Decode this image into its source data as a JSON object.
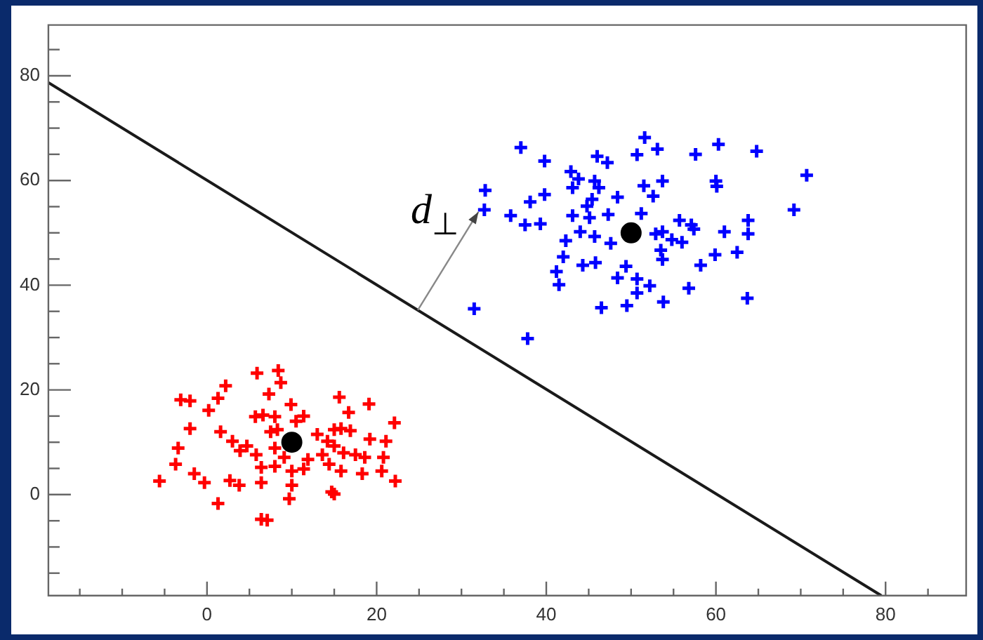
{
  "chart_data": {
    "type": "scatter",
    "xlim": [
      -18.7,
      89.5
    ],
    "ylim": [
      -19.3,
      89.7
    ],
    "xticks": [
      {
        "value": -15,
        "label": null
      },
      {
        "value": -10,
        "label": null
      },
      {
        "value": -5,
        "label": null
      },
      0,
      {
        "value": 5,
        "label": null
      },
      {
        "value": 10,
        "label": null
      },
      {
        "value": 15,
        "label": null
      },
      20,
      {
        "value": 25,
        "label": null
      },
      {
        "value": 30,
        "label": null
      },
      {
        "value": 35,
        "label": null
      },
      40,
      {
        "value": 45,
        "label": null
      },
      {
        "value": 50,
        "label": null
      },
      {
        "value": 55,
        "label": null
      },
      60,
      {
        "value": 65,
        "label": null
      },
      {
        "value": 70,
        "label": null
      },
      {
        "value": 75,
        "label": null
      },
      80,
      {
        "value": 85,
        "label": null
      }
    ],
    "yticks": [
      {
        "value": -15,
        "label": null
      },
      {
        "value": -10,
        "label": null
      },
      {
        "value": -5,
        "label": null
      },
      0,
      {
        "value": 5,
        "label": null
      },
      {
        "value": 10,
        "label": null
      },
      {
        "value": 15,
        "label": null
      },
      20,
      {
        "value": 25,
        "label": null
      },
      {
        "value": 30,
        "label": null
      },
      {
        "value": 35,
        "label": null
      },
      40,
      {
        "value": 45,
        "label": null
      },
      {
        "value": 50,
        "label": null
      },
      {
        "value": 55,
        "label": null
      },
      60,
      {
        "value": 65,
        "label": null
      },
      {
        "value": 70,
        "label": null
      },
      {
        "value": 75,
        "label": null
      },
      80,
      {
        "value": 85,
        "label": null
      }
    ],
    "grid": false,
    "legend": false,
    "annotations": [
      {
        "text": "d$_{⊥}$",
        "x": 32,
        "y": 54
      }
    ],
    "series": [
      {
        "type": "line",
        "color": "#1a1a1a",
        "marker": "none",
        "line_style": "solid",
        "x": [
          -18.7,
          79.5
        ],
        "values": [
          78.7,
          -19.3
        ]
      },
      {
        "color": "#ff0000",
        "marker": "cross",
        "x": [
          5.9,
          8.4,
          8.7,
          2.2,
          -3.1,
          -2.0,
          1.3,
          0.2,
          7.3,
          9.9,
          15.6,
          19.1,
          16.7,
          5.7,
          6.6,
          8.0,
          11.4,
          22.1,
          -2.0,
          1.6,
          7.5,
          8.3,
          10.5,
          13.0,
          15.0,
          16.9,
          15.8,
          21.1,
          19.2,
          -3.4,
          3.0,
          4.7,
          5.8,
          8.0,
          9.1,
          11.9,
          14.2,
          15.0,
          17.5,
          18.6,
          20.8,
          -3.7,
          6.4,
          8.0,
          10.0,
          11.4,
          14.4,
          15.8,
          -1.5,
          -0.3,
          2.7,
          3.8,
          6.4,
          10.0,
          14.7,
          20.6,
          18.3,
          22.2,
          -5.6,
          9.7,
          1.3,
          15.0,
          6.4,
          7.1,
          3.9,
          13.6,
          16.1
        ],
        "values": [
          23.2,
          23.7,
          21.4,
          20.8,
          18.1,
          17.9,
          18.4,
          16.1,
          19.2,
          17.2,
          18.6,
          17.3,
          15.7,
          14.9,
          15.2,
          14.9,
          15.0,
          13.7,
          12.6,
          12.0,
          12.0,
          12.4,
          14.0,
          11.5,
          12.4,
          12.2,
          12.6,
          10.2,
          10.6,
          8.9,
          10.2,
          9.3,
          7.6,
          8.9,
          7.1,
          6.7,
          10.2,
          9.3,
          7.6,
          7.1,
          7.1,
          5.8,
          5.2,
          5.4,
          4.5,
          4.9,
          5.8,
          4.5,
          4.0,
          2.3,
          2.7,
          1.8,
          2.3,
          1.8,
          0.5,
          4.5,
          4.0,
          2.6,
          2.6,
          -0.8,
          -1.7,
          0.1,
          -4.7,
          -4.9,
          8.4,
          7.6,
          8.0
        ]
      },
      {
        "color": "#0000ff",
        "marker": "cross",
        "x": [
          37.0,
          39.8,
          46.0,
          47.2,
          50.7,
          51.6,
          53.1,
          57.6,
          60.3,
          64.8,
          70.7,
          32.8,
          38.1,
          39.8,
          42.9,
          43.8,
          43.1,
          45.7,
          46.2,
          44.8,
          45.4,
          48.4,
          51.5,
          53.7,
          52.6,
          60.0,
          60.1,
          32.7,
          35.8,
          37.5,
          39.3,
          43.1,
          45.1,
          47.3,
          51.2,
          55.7,
          57.1,
          57.4,
          61.0,
          63.8,
          63.8,
          69.2,
          42.3,
          44.0,
          45.7,
          47.6,
          52.9,
          53.7,
          54.8,
          56.0,
          53.5,
          42.0,
          44.3,
          45.8,
          49.4,
          53.7,
          58.2,
          59.9,
          62.5,
          41.2,
          41.5,
          48.4,
          50.7,
          50.7,
          52.2,
          56.8,
          53.8,
          46.5,
          49.5,
          63.7,
          31.5,
          37.8
        ],
        "values": [
          66.3,
          63.7,
          64.6,
          63.4,
          64.9,
          68.2,
          66.0,
          65.0,
          66.9,
          65.6,
          61.0,
          58.1,
          55.9,
          57.3,
          61.7,
          60.3,
          58.6,
          59.9,
          58.6,
          55.1,
          56.4,
          56.8,
          59.0,
          59.9,
          57.0,
          59.9,
          58.9,
          54.4,
          53.3,
          51.5,
          51.7,
          53.3,
          52.9,
          53.5,
          53.7,
          52.4,
          51.5,
          50.7,
          50.2,
          52.4,
          49.8,
          54.4,
          48.5,
          50.2,
          49.3,
          48.0,
          49.8,
          50.2,
          48.7,
          48.2,
          46.7,
          45.4,
          43.8,
          44.3,
          43.6,
          44.9,
          43.8,
          45.8,
          46.3,
          42.6,
          40.1,
          41.4,
          41.2,
          38.5,
          39.9,
          39.4,
          36.8,
          35.7,
          36.1,
          37.5,
          35.5,
          29.8
        ]
      },
      {
        "color": "#000000",
        "marker": "circle",
        "x": [
          10,
          50
        ],
        "values": [
          10,
          50
        ]
      }
    ]
  }
}
